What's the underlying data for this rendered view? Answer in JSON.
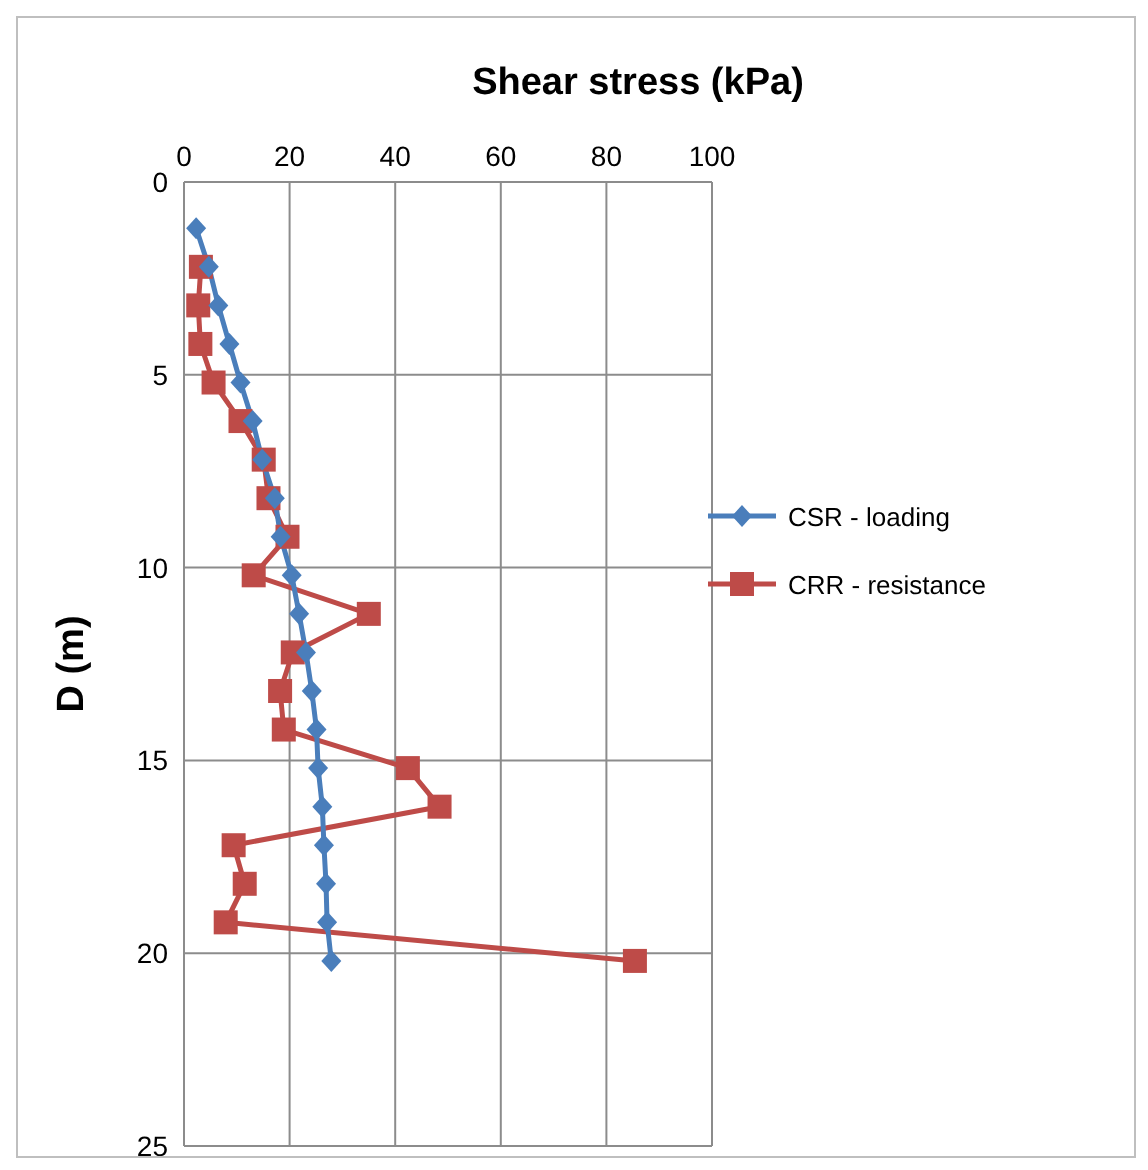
{
  "chart_data": {
    "type": "line",
    "xlabel": "Shear stress (kPa)",
    "ylabel": "D (m)",
    "xlim": [
      0,
      100
    ],
    "xticks": [
      0,
      20,
      40,
      60,
      80,
      100
    ],
    "ylim": [
      25,
      0
    ],
    "yticks": [
      0,
      5,
      10,
      15,
      20,
      25
    ],
    "grid": true,
    "legend": "right",
    "line_style": "solid",
    "series": [
      {
        "name": "CSR - loading",
        "color": "#4a7ebb",
        "marker": "diamond",
        "x": [
          2.3,
          4.7,
          6.5,
          8.6,
          10.7,
          13.0,
          14.8,
          17.2,
          18.3,
          20.4,
          21.8,
          23.1,
          24.2,
          25.1,
          25.4,
          26.2,
          26.5,
          26.9,
          27.1,
          27.9
        ],
        "values": [
          1.2,
          2.2,
          3.2,
          4.2,
          5.2,
          6.2,
          7.2,
          8.2,
          9.2,
          10.2,
          11.2,
          12.2,
          13.2,
          14.2,
          15.2,
          16.2,
          17.2,
          18.2,
          19.2,
          20.2
        ]
      },
      {
        "name": "CRR - resistance",
        "color": "#be4b48",
        "marker": "square",
        "x": [
          3.2,
          2.7,
          3.1,
          5.6,
          10.7,
          15.1,
          16.0,
          19.6,
          13.2,
          35.0,
          20.6,
          18.2,
          18.9,
          42.4,
          48.4,
          9.4,
          11.5,
          7.9,
          85.4
        ],
        "values": [
          2.2,
          3.2,
          4.2,
          5.2,
          6.2,
          7.2,
          8.2,
          9.2,
          10.2,
          11.2,
          12.2,
          13.2,
          14.2,
          15.2,
          16.2,
          17.2,
          18.2,
          19.2,
          20.2
        ]
      }
    ]
  }
}
